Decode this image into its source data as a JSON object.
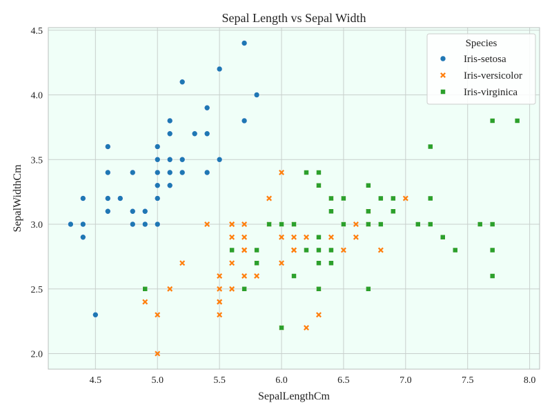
{
  "chart_data": {
    "type": "scatter",
    "title": "Sepal Length vs Sepal Width",
    "xlabel": "SepalLengthCm",
    "ylabel": "SepalWidthCm",
    "xlim": [
      4.12,
      8.08
    ],
    "ylim": [
      1.88,
      4.52
    ],
    "xticks": [
      "4.5",
      "5.0",
      "5.5",
      "6.0",
      "6.5",
      "7.0",
      "7.5",
      "8.0"
    ],
    "yticks": [
      "2.0",
      "2.5",
      "3.0",
      "3.5",
      "4.0",
      "4.5"
    ],
    "grid": true,
    "plot_background": "#f0fff8",
    "legend": {
      "title": "Species",
      "placement": "top-right"
    },
    "series": [
      {
        "name": "Iris-setosa",
        "marker": "circle",
        "color": "#1f77b4",
        "points": [
          [
            5.1,
            3.5
          ],
          [
            4.9,
            3.0
          ],
          [
            4.7,
            3.2
          ],
          [
            4.6,
            3.1
          ],
          [
            5.0,
            3.6
          ],
          [
            5.4,
            3.9
          ],
          [
            4.6,
            3.4
          ],
          [
            5.0,
            3.4
          ],
          [
            4.4,
            2.9
          ],
          [
            4.9,
            3.1
          ],
          [
            5.4,
            3.7
          ],
          [
            4.8,
            3.4
          ],
          [
            4.8,
            3.0
          ],
          [
            4.3,
            3.0
          ],
          [
            5.8,
            4.0
          ],
          [
            5.7,
            4.4
          ],
          [
            5.4,
            3.9
          ],
          [
            5.1,
            3.5
          ],
          [
            5.7,
            3.8
          ],
          [
            5.1,
            3.8
          ],
          [
            5.4,
            3.4
          ],
          [
            5.1,
            3.7
          ],
          [
            4.6,
            3.6
          ],
          [
            5.1,
            3.3
          ],
          [
            4.8,
            3.4
          ],
          [
            5.0,
            3.0
          ],
          [
            5.0,
            3.4
          ],
          [
            5.2,
            3.5
          ],
          [
            5.2,
            3.4
          ],
          [
            4.7,
            3.2
          ],
          [
            4.8,
            3.1
          ],
          [
            5.4,
            3.4
          ],
          [
            5.2,
            4.1
          ],
          [
            5.5,
            4.2
          ],
          [
            4.9,
            3.1
          ],
          [
            5.0,
            3.2
          ],
          [
            5.5,
            3.5
          ],
          [
            4.9,
            3.1
          ],
          [
            4.4,
            3.0
          ],
          [
            5.1,
            3.4
          ],
          [
            5.0,
            3.5
          ],
          [
            4.5,
            2.3
          ],
          [
            4.4,
            3.2
          ],
          [
            5.0,
            3.5
          ],
          [
            5.1,
            3.8
          ],
          [
            4.8,
            3.0
          ],
          [
            5.1,
            3.8
          ],
          [
            4.6,
            3.2
          ],
          [
            5.3,
            3.7
          ],
          [
            5.0,
            3.3
          ]
        ]
      },
      {
        "name": "Iris-versicolor",
        "marker": "x",
        "color": "#ff7f0e",
        "points": [
          [
            7.0,
            3.2
          ],
          [
            6.4,
            3.2
          ],
          [
            6.9,
            3.1
          ],
          [
            5.5,
            2.3
          ],
          [
            6.5,
            2.8
          ],
          [
            5.7,
            2.8
          ],
          [
            6.3,
            3.3
          ],
          [
            4.9,
            2.4
          ],
          [
            6.6,
            2.9
          ],
          [
            5.2,
            2.7
          ],
          [
            5.0,
            2.0
          ],
          [
            5.9,
            3.0
          ],
          [
            6.0,
            2.2
          ],
          [
            6.1,
            2.9
          ],
          [
            5.6,
            2.9
          ],
          [
            6.7,
            3.1
          ],
          [
            5.6,
            3.0
          ],
          [
            5.8,
            2.7
          ],
          [
            6.2,
            2.2
          ],
          [
            5.6,
            2.5
          ],
          [
            5.9,
            3.2
          ],
          [
            6.1,
            2.8
          ],
          [
            6.3,
            2.5
          ],
          [
            6.1,
            2.8
          ],
          [
            6.4,
            2.9
          ],
          [
            6.6,
            3.0
          ],
          [
            6.8,
            2.8
          ],
          [
            6.7,
            3.0
          ],
          [
            6.0,
            2.9
          ],
          [
            5.7,
            2.6
          ],
          [
            5.5,
            2.4
          ],
          [
            5.5,
            2.4
          ],
          [
            5.8,
            2.7
          ],
          [
            6.0,
            2.7
          ],
          [
            5.4,
            3.0
          ],
          [
            6.0,
            3.4
          ],
          [
            6.7,
            3.1
          ],
          [
            6.3,
            2.3
          ],
          [
            5.6,
            3.0
          ],
          [
            5.5,
            2.5
          ],
          [
            5.5,
            2.6
          ],
          [
            6.1,
            3.0
          ],
          [
            5.8,
            2.6
          ],
          [
            5.0,
            2.3
          ],
          [
            5.6,
            2.7
          ],
          [
            5.7,
            3.0
          ],
          [
            5.7,
            2.9
          ],
          [
            6.2,
            2.9
          ],
          [
            5.1,
            2.5
          ],
          [
            5.7,
            2.8
          ]
        ]
      },
      {
        "name": "Iris-virginica",
        "marker": "square",
        "color": "#2ca02c",
        "points": [
          [
            6.3,
            3.3
          ],
          [
            5.8,
            2.7
          ],
          [
            7.1,
            3.0
          ],
          [
            6.3,
            2.9
          ],
          [
            6.5,
            3.0
          ],
          [
            7.6,
            3.0
          ],
          [
            4.9,
            2.5
          ],
          [
            7.3,
            2.9
          ],
          [
            6.7,
            2.5
          ],
          [
            7.2,
            3.6
          ],
          [
            6.5,
            3.2
          ],
          [
            6.4,
            2.7
          ],
          [
            6.8,
            3.0
          ],
          [
            5.7,
            2.5
          ],
          [
            5.8,
            2.8
          ],
          [
            6.4,
            3.2
          ],
          [
            6.5,
            3.0
          ],
          [
            7.7,
            3.8
          ],
          [
            7.7,
            2.6
          ],
          [
            6.0,
            2.2
          ],
          [
            6.9,
            3.2
          ],
          [
            5.6,
            2.8
          ],
          [
            7.7,
            2.8
          ],
          [
            6.3,
            2.7
          ],
          [
            6.7,
            3.3
          ],
          [
            7.2,
            3.2
          ],
          [
            6.2,
            2.8
          ],
          [
            6.1,
            3.0
          ],
          [
            6.4,
            2.8
          ],
          [
            7.2,
            3.0
          ],
          [
            7.4,
            2.8
          ],
          [
            7.9,
            3.8
          ],
          [
            6.4,
            2.8
          ],
          [
            6.3,
            2.8
          ],
          [
            6.1,
            2.6
          ],
          [
            7.7,
            3.0
          ],
          [
            6.3,
            3.4
          ],
          [
            6.4,
            3.1
          ],
          [
            6.0,
            3.0
          ],
          [
            6.9,
            3.1
          ],
          [
            6.7,
            3.1
          ],
          [
            6.9,
            3.1
          ],
          [
            5.8,
            2.7
          ],
          [
            6.8,
            3.2
          ],
          [
            6.7,
            3.3
          ],
          [
            6.7,
            3.0
          ],
          [
            6.3,
            2.5
          ],
          [
            6.5,
            3.0
          ],
          [
            6.2,
            3.4
          ],
          [
            5.9,
            3.0
          ]
        ]
      }
    ]
  }
}
